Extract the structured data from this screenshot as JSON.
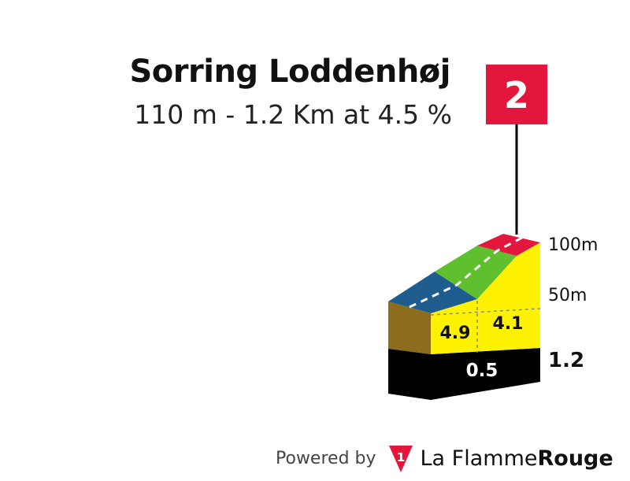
{
  "climb": {
    "name": "Sorring Loddenhøj",
    "stats": "110 m - 1.2 Km at 4.5 %",
    "category": "2"
  },
  "colors": {
    "flag": "#e3173d",
    "yellow": "#fff200",
    "black": "#000000",
    "side": "#8c6d1c",
    "blue": "#1f5d8f",
    "green": "#5fbf2e",
    "red": "#e3173d"
  },
  "profile": {
    "segments": [
      {
        "gradient_label": "4.9",
        "top_color": "blue"
      },
      {
        "gradient_label": "4.1",
        "top_color": "green"
      },
      {
        "gradient_label": "",
        "top_color": "red"
      }
    ],
    "base_label": "0.5",
    "altitude_labels": [
      "100m",
      "50m"
    ],
    "distance_label": "1.2"
  },
  "footer": {
    "powered_by": "Powered by",
    "brand_light": "La Flamme",
    "brand_bold": "Rouge",
    "logo_numeral": "1"
  }
}
